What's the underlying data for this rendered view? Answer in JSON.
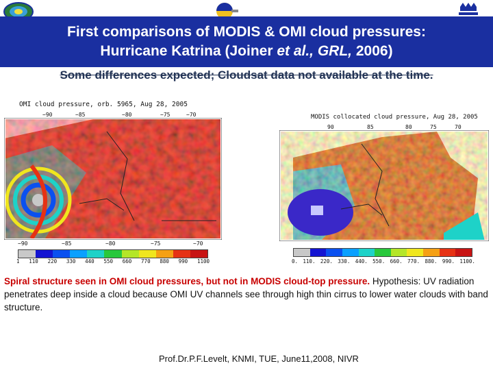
{
  "title": {
    "line1": "First comparisons of MODIS & OMI cloud pressures:",
    "line2_prefix": "Hurricane Katrina (Joiner ",
    "line2_italic": "et al., GRL,",
    "line2_suffix": " 2006)"
  },
  "subtitle": "Some differences expected; Cloudsat data not available at the time.",
  "left_map": {
    "label": "OMI cloud pressure, orb. 5965, Aug 28, 2005",
    "top_ticks": [
      "−90",
      "−85",
      "−80",
      "−75",
      "−70"
    ],
    "bottom_ticks": [
      "−90",
      "−85",
      "−80",
      "−75",
      "−70"
    ],
    "colorbar_labels": [
      "1",
      "110",
      "220",
      "330",
      "440",
      "550",
      "660",
      "770",
      "880",
      "990",
      "1100"
    ]
  },
  "right_map": {
    "label": "MODIS collocated cloud pressure, Aug 28, 2005",
    "top_ticks": [
      "90",
      "85",
      "80",
      "75",
      "70"
    ],
    "colorbar_labels": [
      "0.",
      "110.",
      "220.",
      "330.",
      "440.",
      "550.",
      "660.",
      "770.",
      "880.",
      "990.",
      "1100."
    ]
  },
  "colors": {
    "banner": "#1a2fa0",
    "caption_red": "#c80000",
    "scale": [
      "#c8c8c8",
      "#1414d2",
      "#0a50f0",
      "#0aa0ff",
      "#1ed2c8",
      "#28c83c",
      "#b4e628",
      "#f0e61e",
      "#f5a014",
      "#e63214",
      "#c81414"
    ]
  },
  "caption": {
    "red": "Spiral structure seen in OMI cloud pressures, but not in MODIS cloud-top pressure.",
    "body": " Hypothesis: UV radiation penetrates deep inside a cloud because OMI UV channels see through high thin cirrus to lower water clouds with band structure."
  },
  "footer": "Prof.Dr.P.F.Levelt, KNMI, TUE, June11,2008, NIVR"
}
